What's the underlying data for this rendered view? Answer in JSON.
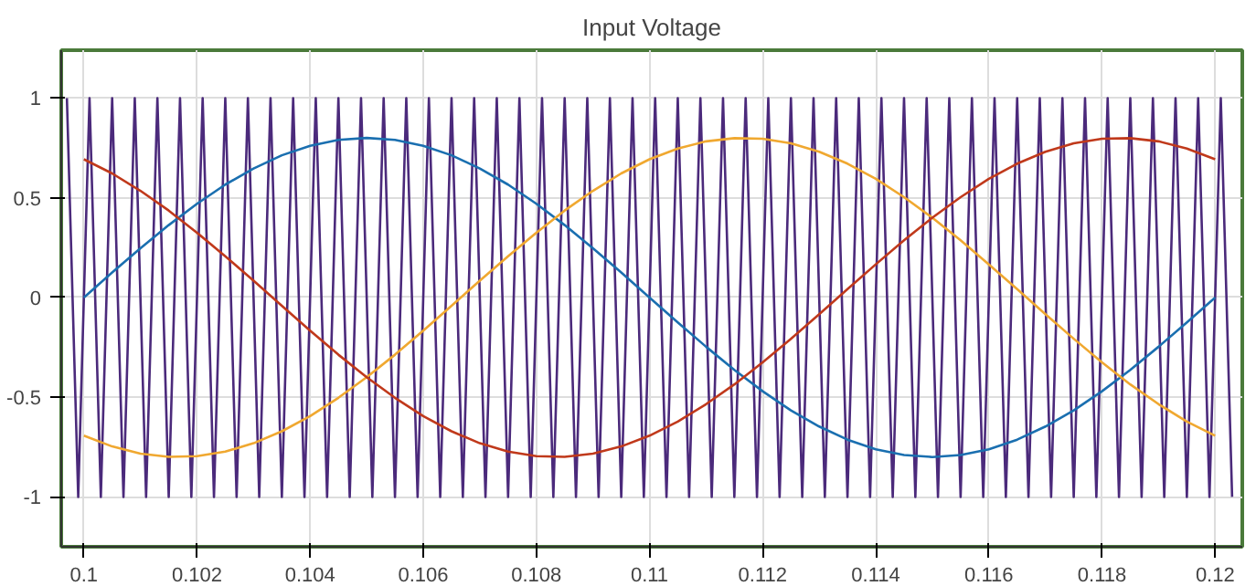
{
  "chart_data": {
    "type": "line",
    "title": "Input Voltage",
    "x": [
      0.1,
      0.1005,
      0.101,
      0.1015,
      0.102,
      0.1025,
      0.103,
      0.1035,
      0.104,
      0.1045,
      0.105,
      0.1055,
      0.106,
      0.1065,
      0.107,
      0.1075,
      0.108,
      0.1085,
      0.109,
      0.1095,
      0.11,
      0.1105,
      0.111,
      0.1115,
      0.112,
      0.1125,
      0.113,
      0.1135,
      0.114,
      0.1145,
      0.115,
      0.1155,
      0.116,
      0.1165,
      0.117,
      0.1175,
      0.118,
      0.1185,
      0.119,
      0.1195,
      0.12
    ],
    "series": [
      {
        "color": "#4b2a7b",
        "x": [
          0.0997,
          0.0999,
          0.1001,
          0.1003,
          0.1005,
          0.1007,
          0.1009,
          0.1011,
          0.1013,
          0.1015,
          0.1017,
          0.1019,
          0.1021,
          0.1023,
          0.1025,
          0.1027,
          0.1029,
          0.1031,
          0.1033,
          0.1035,
          0.1037,
          0.1039,
          0.1041,
          0.1043,
          0.1045,
          0.1047,
          0.1049,
          0.1051,
          0.1053,
          0.1055,
          0.1057,
          0.1059,
          0.1061,
          0.1063,
          0.1065,
          0.1067,
          0.1069,
          0.1071,
          0.1073,
          0.1075,
          0.1077,
          0.1079,
          0.1081,
          0.1083,
          0.1085,
          0.1087,
          0.1089,
          0.1091,
          0.1093,
          0.1095,
          0.1097,
          0.1099,
          0.1101,
          0.1103,
          0.1105,
          0.1107,
          0.1109,
          0.1111,
          0.1113,
          0.1115,
          0.1117,
          0.1119,
          0.1121,
          0.1123,
          0.1125,
          0.1127,
          0.1129,
          0.1131,
          0.1133,
          0.1135,
          0.1137,
          0.1139,
          0.1141,
          0.1143,
          0.1145,
          0.1147,
          0.1149,
          0.1151,
          0.1153,
          0.1155,
          0.1157,
          0.1159,
          0.1161,
          0.1163,
          0.1165,
          0.1167,
          0.1169,
          0.1171,
          0.1173,
          0.1175,
          0.1177,
          0.1179,
          0.1181,
          0.1183,
          0.1185,
          0.1187,
          0.1189,
          0.1191,
          0.1193,
          0.1195,
          0.1197,
          0.1199,
          0.1201,
          0.1203
        ],
        "values": [
          1,
          -1,
          1,
          -1,
          1,
          -1,
          1,
          -1,
          1,
          -1,
          1,
          -1,
          1,
          -1,
          1,
          -1,
          1,
          -1,
          1,
          -1,
          1,
          -1,
          1,
          -1,
          1,
          -1,
          1,
          -1,
          1,
          -1,
          1,
          -1,
          1,
          -1,
          1,
          -1,
          1,
          -1,
          1,
          -1,
          1,
          -1,
          1,
          -1,
          1,
          -1,
          1,
          -1,
          1,
          -1,
          1,
          -1,
          1,
          -1,
          1,
          -1,
          1,
          -1,
          1,
          -1,
          1,
          -1,
          1,
          -1,
          1,
          -1,
          1,
          -1,
          1,
          -1,
          1,
          -1,
          1,
          -1,
          1,
          -1,
          1,
          -1,
          1,
          -1,
          1,
          -1,
          1,
          -1,
          1,
          -1,
          1,
          -1,
          1,
          -1,
          1,
          -1,
          1,
          -1,
          1,
          -1,
          1,
          -1,
          1,
          -1,
          1,
          -1,
          1,
          -1
        ]
      },
      {
        "color": "#1a6fb0",
        "values": [
          0,
          0.125,
          0.247,
          0.363,
          0.47,
          0.566,
          0.647,
          0.713,
          0.761,
          0.79,
          0.8,
          0.79,
          0.761,
          0.713,
          0.647,
          0.566,
          0.47,
          0.363,
          0.247,
          0.125,
          0,
          -0.125,
          -0.247,
          -0.363,
          -0.47,
          -0.566,
          -0.647,
          -0.713,
          -0.761,
          -0.79,
          -0.8,
          -0.79,
          -0.761,
          -0.713,
          -0.647,
          -0.566,
          -0.47,
          -0.363,
          -0.247,
          -0.125,
          0
        ]
      },
      {
        "color": "#f0a830",
        "values": [
          -0.693,
          -0.747,
          -0.783,
          -0.799,
          -0.796,
          -0.773,
          -0.731,
          -0.671,
          -0.595,
          -0.503,
          -0.4,
          -0.287,
          -0.166,
          -0.042,
          0.084,
          0.207,
          0.325,
          0.436,
          0.535,
          0.622,
          0.693,
          0.747,
          0.783,
          0.799,
          0.796,
          0.773,
          0.731,
          0.671,
          0.595,
          0.503,
          0.4,
          0.287,
          0.166,
          0.042,
          -0.084,
          -0.207,
          -0.325,
          -0.436,
          -0.535,
          -0.622,
          -0.693
        ]
      },
      {
        "color": "#c0391b",
        "values": [
          0.693,
          0.622,
          0.535,
          0.436,
          0.325,
          0.207,
          0.084,
          -0.042,
          -0.166,
          -0.287,
          -0.4,
          -0.503,
          -0.595,
          -0.671,
          -0.731,
          -0.773,
          -0.796,
          -0.799,
          -0.783,
          -0.747,
          -0.693,
          -0.622,
          -0.535,
          -0.436,
          -0.325,
          -0.207,
          -0.084,
          0.042,
          0.166,
          0.287,
          0.4,
          0.503,
          0.595,
          0.671,
          0.731,
          0.773,
          0.796,
          0.799,
          0.783,
          0.747,
          0.693
        ]
      }
    ],
    "xlim": [
      0.0996,
      0.12048
    ],
    "xticks": [
      0.1,
      0.102,
      0.104,
      0.106,
      0.108,
      0.11,
      0.112,
      0.114,
      0.116,
      0.118,
      0.12
    ],
    "ylim": [
      -1.25,
      1.24
    ],
    "yticks": [
      -1,
      -0.5,
      0,
      0.5,
      1
    ],
    "grid": true,
    "line_style": "solid",
    "marker": "none"
  }
}
